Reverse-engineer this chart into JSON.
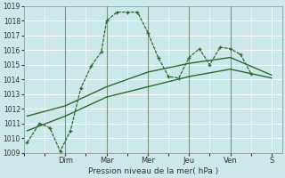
{
  "xlabel": "Pression niveau de la mer( hPa )",
  "ylim": [
    1009,
    1019
  ],
  "yticks": [
    1009,
    1010,
    1011,
    1012,
    1013,
    1014,
    1015,
    1016,
    1017,
    1018,
    1019
  ],
  "day_labels": [
    "Dim",
    "Mar",
    "Mer",
    "Jeu",
    "Ven",
    "S"
  ],
  "day_positions": [
    2,
    4,
    6,
    8,
    10,
    12
  ],
  "xlim": [
    0,
    12.5
  ],
  "bg_color": "#cce8ea",
  "grid_color": "#ffffff",
  "line_color": "#2d6a2d",
  "sep_color": "#5a7a5a",
  "series1_x": [
    0.15,
    0.75,
    1.25,
    1.75,
    2.25,
    2.75,
    3.25,
    3.75,
    4.0,
    4.5,
    5.0,
    5.5,
    6.0,
    6.5,
    7.0,
    7.5,
    8.0,
    8.5,
    9.0,
    9.5,
    10.0,
    10.5,
    11.0
  ],
  "series1_y": [
    1009.7,
    1011.0,
    1010.7,
    1009.1,
    1010.5,
    1013.4,
    1014.9,
    1015.9,
    1018.0,
    1018.6,
    1018.6,
    1018.6,
    1017.2,
    1015.5,
    1014.2,
    1014.1,
    1015.5,
    1016.1,
    1015.0,
    1016.2,
    1016.1,
    1015.7,
    1014.4
  ],
  "series2_x": [
    0.15,
    2.0,
    4.0,
    6.0,
    8.0,
    10.0,
    12.0
  ],
  "series2_y": [
    1011.5,
    1012.2,
    1013.5,
    1014.5,
    1015.1,
    1015.5,
    1014.3
  ],
  "series3_x": [
    0.15,
    2.0,
    4.0,
    6.0,
    8.0,
    10.0,
    12.0
  ],
  "series3_y": [
    1010.5,
    1011.5,
    1012.8,
    1013.5,
    1014.2,
    1014.7,
    1014.1
  ]
}
